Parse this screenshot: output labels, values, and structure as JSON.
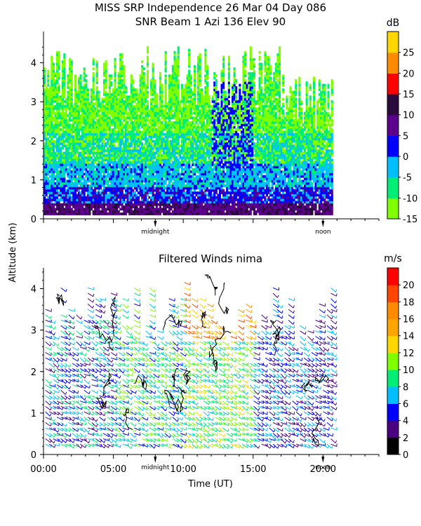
{
  "chart_data": [
    {
      "type": "heatmap",
      "title": "MISS SRP Independence  26 Mar 04 Day 086",
      "subtitle": "SNR Beam 1 Azi 136 Elev 90",
      "ylabel": "Altitude (km)",
      "ylim": [
        0,
        4.8
      ],
      "yticks": [
        "0",
        "1",
        "2",
        "3",
        "4"
      ],
      "xlim": [
        0,
        24
      ],
      "markers": [
        {
          "label": "midnight",
          "x": 8
        },
        {
          "label": "noon",
          "x": 20
        }
      ],
      "colorbar": {
        "unit": "dB",
        "range": [
          -15,
          30
        ],
        "ticks": [
          "-15",
          "-10",
          "-5",
          "0",
          "5",
          "10",
          "15",
          "20",
          "25"
        ],
        "colors": [
          "#7fff00",
          "#00ee76",
          "#00bfff",
          "#0000ff",
          "#5a008c",
          "#2b0a3d",
          "#ff0000",
          "#ff8c00",
          "#ffd700"
        ]
      },
      "data_extent": {
        "x": [
          0,
          20.7
        ],
        "y": [
          0.1,
          4.7
        ]
      }
    },
    {
      "type": "scatter",
      "title": "Filtered Winds nima",
      "xlabel": "Time (UT)",
      "ylim": [
        0,
        4.5
      ],
      "yticks": [
        "0",
        "1",
        "2",
        "3",
        "4"
      ],
      "xlim": [
        0,
        24
      ],
      "xticks": [
        "00:00",
        "05:00",
        "10:00",
        "15:00",
        "20:00"
      ],
      "markers": [
        {
          "label": "midnight",
          "x": 8
        },
        {
          "label": "noon",
          "x": 20
        }
      ],
      "colorbar": {
        "unit": "m/s",
        "range": [
          0,
          22
        ],
        "ticks": [
          "0",
          "2",
          "4",
          "6",
          "8",
          "10",
          "12",
          "14",
          "16",
          "18",
          "20"
        ],
        "colors": [
          "#000000",
          "#4b0082",
          "#0000ff",
          "#00bfff",
          "#00ee76",
          "#7fff00",
          "#ffd700",
          "#ffa500",
          "#ff8c00",
          "#ff4500",
          "#ff0000"
        ]
      },
      "data_extent": {
        "x": [
          0,
          20.7
        ],
        "y": [
          0.15,
          4.4
        ]
      }
    }
  ]
}
